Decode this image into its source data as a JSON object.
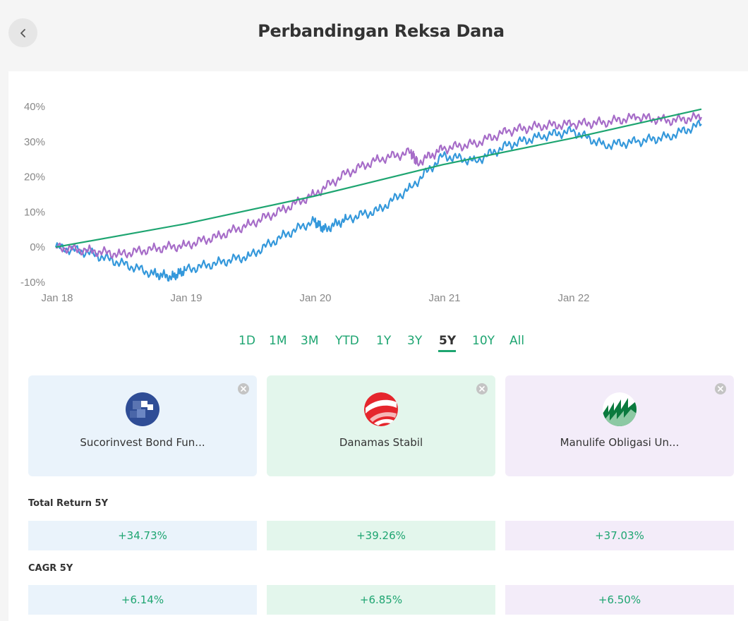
{
  "header": {
    "title": "Perbandingan Reksa Dana",
    "back_icon": "chevron-left-icon"
  },
  "chart_data": {
    "type": "line",
    "title": "",
    "xlabel": "",
    "ylabel": "",
    "x_tick_labels": [
      "Jan 18",
      "Jan 19",
      "Jan 20",
      "Jan 21",
      "Jan 22"
    ],
    "y_tick_labels": [
      "40%",
      "30%",
      "20%",
      "10%",
      "0%",
      "-10%"
    ],
    "ylim": [
      -10,
      40
    ],
    "x_unit": "years since Jan 18",
    "grid": false,
    "legend": "none",
    "series": [
      {
        "color": "#3498db",
        "x": [
          0,
          0.25,
          0.5,
          0.75,
          0.9,
          1.0,
          1.25,
          1.5,
          1.75,
          2.0,
          2.08,
          2.25,
          2.5,
          2.75,
          3.0,
          3.25,
          3.5,
          3.75,
          4.0,
          4.25,
          4.5,
          4.75,
          5.0
        ],
        "values": [
          0,
          -1.5,
          -4.5,
          -7.5,
          -8.5,
          -6.5,
          -4.5,
          -2.5,
          3,
          7.5,
          5,
          8,
          10.5,
          17,
          26,
          24.5,
          29,
          31.5,
          33,
          29,
          30,
          31.5,
          35
        ]
      },
      {
        "color": "#a66cc8",
        "x": [
          0,
          0.25,
          0.5,
          0.75,
          1.0,
          1.25,
          1.5,
          1.75,
          2.0,
          2.25,
          2.5,
          2.75,
          2.8,
          3.0,
          3.25,
          3.5,
          3.75,
          4.0,
          4.25,
          4.5,
          4.75,
          5.0
        ],
        "values": [
          0,
          -1,
          -2,
          -0.5,
          0.5,
          3,
          6.5,
          10.5,
          15,
          21,
          25,
          27,
          24,
          28,
          29.5,
          33,
          34.5,
          35,
          35.5,
          37,
          36,
          37
        ]
      },
      {
        "color": "#1ea571",
        "x": [
          0,
          1,
          2,
          3,
          4,
          5
        ],
        "values": [
          0,
          6.6,
          14.5,
          23.5,
          31,
          39.26
        ]
      }
    ]
  },
  "periods": [
    "1D",
    "1M",
    "3M",
    "YTD",
    "1Y",
    "3Y",
    "5Y",
    "10Y",
    "All"
  ],
  "active_period": "5Y",
  "funds": [
    {
      "name": "Sucorinvest Bond Fun...",
      "color": "#3498db",
      "logo": "sucorinvest-logo-icon"
    },
    {
      "name": "Danamas Stabil",
      "color": "#1ea571",
      "logo": "danamas-logo-icon"
    },
    {
      "name": "Manulife Obligasi Un...",
      "color": "#a66cc8",
      "logo": "manulife-logo-icon"
    }
  ],
  "total_return": {
    "label": "Total Return 5Y",
    "values": [
      "+34.73%",
      "+39.26%",
      "+37.03%"
    ]
  },
  "cagr": {
    "label": "CAGR 5Y",
    "values": [
      "+6.14%",
      "+6.85%",
      "+6.50%"
    ]
  }
}
